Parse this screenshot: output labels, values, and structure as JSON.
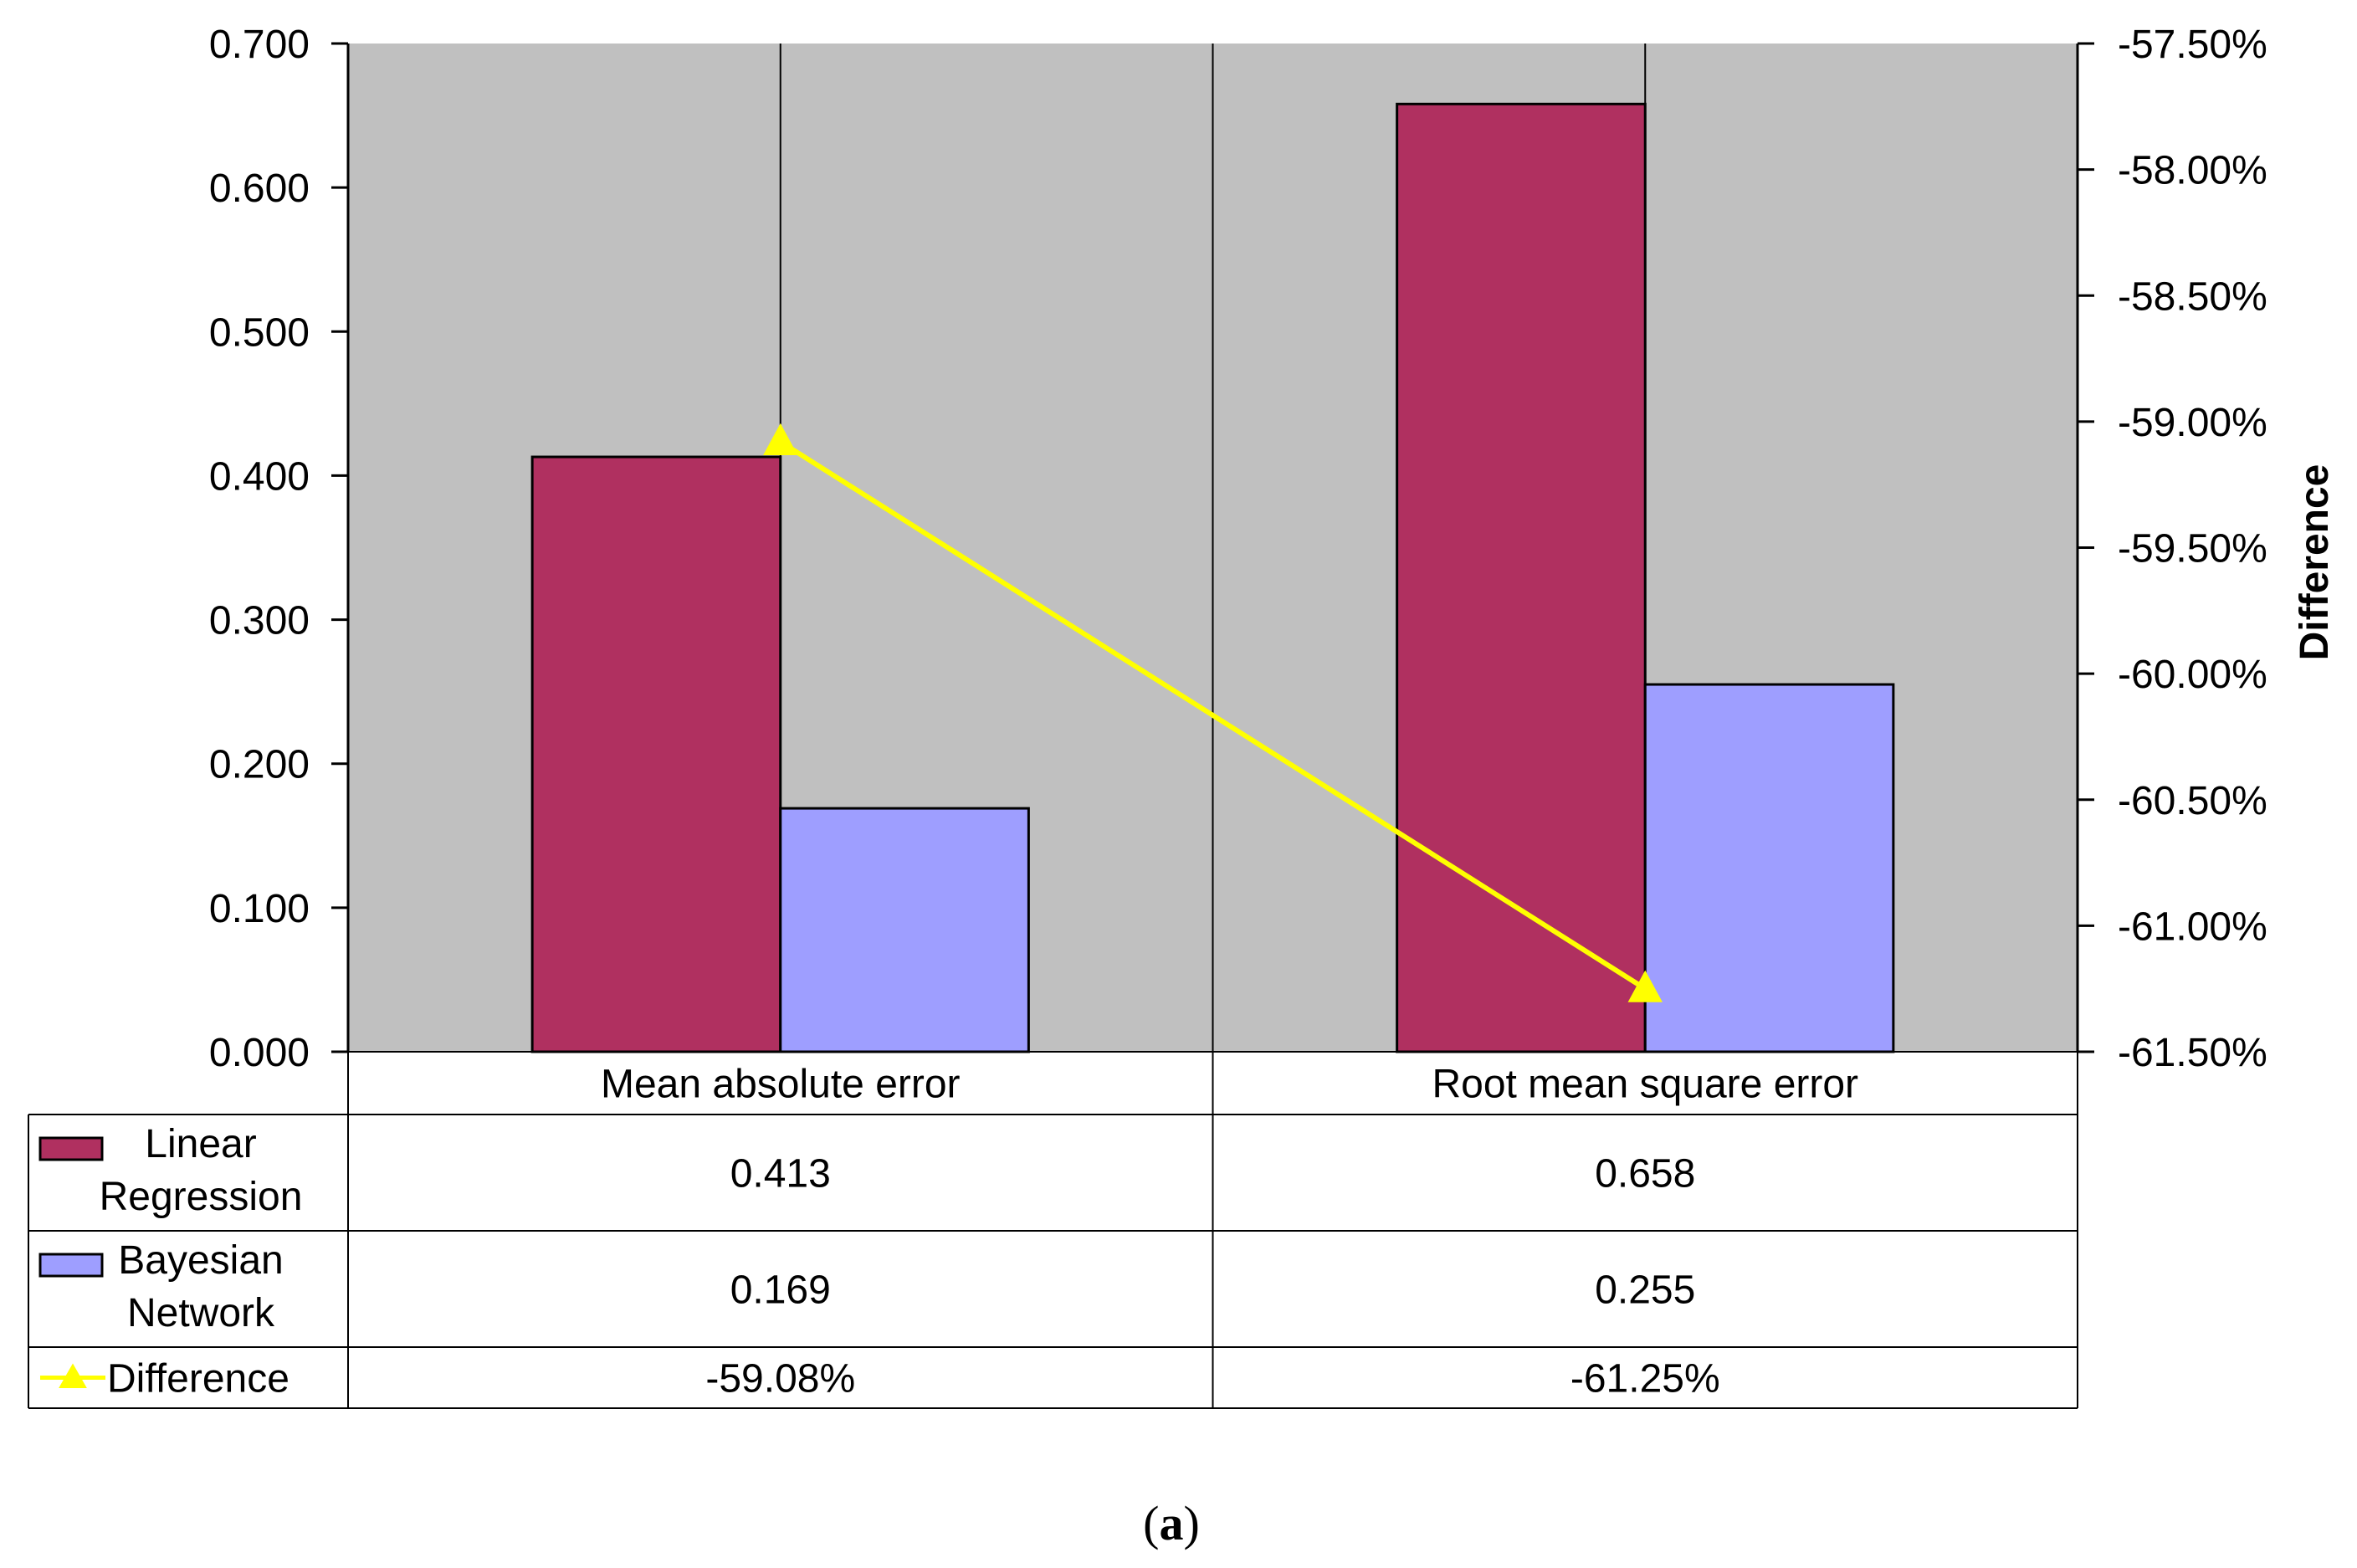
{
  "chart_data": {
    "type": "bar",
    "categories": [
      "Mean absolute error",
      "Root mean square error"
    ],
    "series": [
      {
        "name": "Linear Regression",
        "name_lines": [
          "Linear",
          "Regression"
        ],
        "axis": "left",
        "color": "#B03060",
        "values": [
          0.413,
          0.658
        ],
        "value_labels": [
          "0.413",
          "0.658"
        ]
      },
      {
        "name": "Bayesian Network",
        "name_lines": [
          "Bayesian",
          "Network"
        ],
        "axis": "left",
        "color": "#9E9EFF",
        "values": [
          0.169,
          0.255
        ],
        "value_labels": [
          "0.169",
          "0.255"
        ]
      },
      {
        "name": "Difference",
        "name_lines": [
          "Difference"
        ],
        "axis": "right",
        "kind": "line",
        "marker": "triangle",
        "color": "#FFFF00",
        "values": [
          -59.08,
          -61.25
        ],
        "value_labels": [
          "-59.08%",
          "-61.25%"
        ]
      }
    ],
    "y_left": {
      "ylim": [
        0,
        0.7
      ],
      "ticks": [
        0.7,
        0.6,
        0.5,
        0.4,
        0.3,
        0.2,
        0.1,
        0.0
      ],
      "tick_labels": [
        "0.700",
        "0.600",
        "0.500",
        "0.400",
        "0.300",
        "0.200",
        "0.100",
        "0.000"
      ]
    },
    "y_right": {
      "label": "Difference",
      "ylim": [
        -61.5,
        -57.5
      ],
      "ticks": [
        -57.5,
        -58.0,
        -58.5,
        -59.0,
        -59.5,
        -60.0,
        -60.5,
        -61.0,
        -61.5
      ],
      "tick_labels": [
        "-57.50%",
        "-58.00%",
        "-58.50%",
        "-59.00%",
        "-59.50%",
        "-60.00%",
        "-60.50%",
        "-61.00%",
        "-61.50%"
      ]
    },
    "plot_background": "#C0C0C0",
    "data_table": true,
    "gridlines": false
  },
  "caption": {
    "open": "(",
    "letter": "a",
    "close": ")"
  }
}
